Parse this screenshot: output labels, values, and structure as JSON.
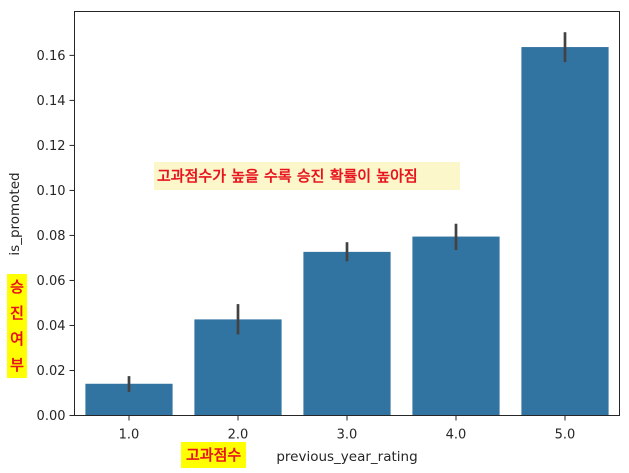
{
  "chart_data": {
    "type": "bar",
    "xlabel": "previous_year_rating",
    "ylabel": "is_promoted",
    "categories": [
      "1.0",
      "2.0",
      "3.0",
      "4.0",
      "5.0"
    ],
    "values": [
      0.0141,
      0.0427,
      0.0727,
      0.0795,
      0.1637
    ],
    "error_low": [
      0.0105,
      0.036,
      0.0685,
      0.0735,
      0.157
    ],
    "error_high": [
      0.0175,
      0.0495,
      0.077,
      0.0852,
      0.1703
    ],
    "ylim": [
      0.0,
      0.1795
    ],
    "yticks": [
      0.0,
      0.02,
      0.04,
      0.06,
      0.08,
      0.1,
      0.12,
      0.14,
      0.16
    ],
    "ytick_labels": [
      "0.00",
      "0.02",
      "0.04",
      "0.06",
      "0.08",
      "0.10",
      "0.12",
      "0.14",
      "0.16"
    ],
    "bar_color": "#3274a1",
    "errorbar_color": "#424242",
    "grid": false
  },
  "annotations": {
    "main": "고과점수가 높을 수록 승진 확률이 높아짐",
    "x_note": "고과점수",
    "y_note_chars": [
      "승",
      "진",
      "여",
      "부"
    ],
    "text_color": "#e8131c"
  }
}
